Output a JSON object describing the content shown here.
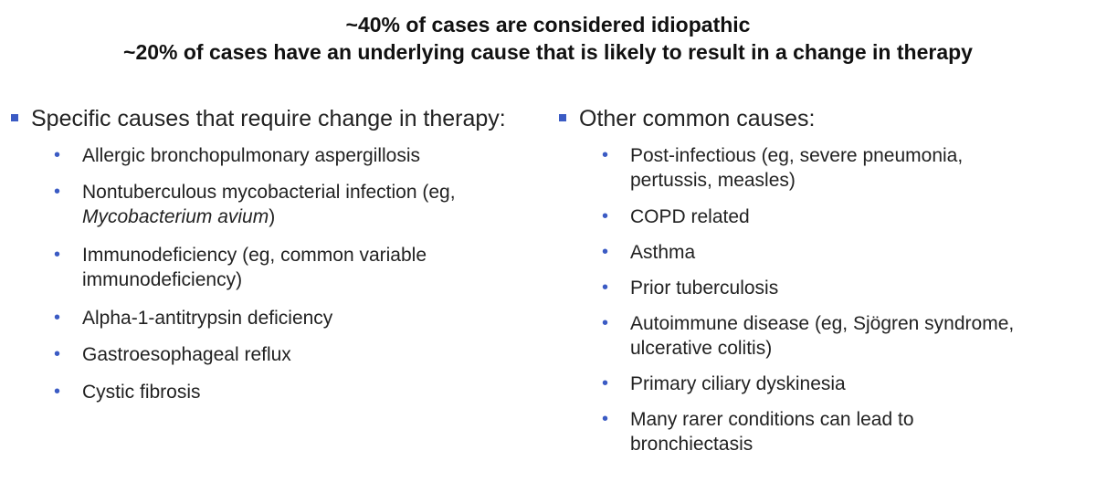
{
  "header": {
    "line1": "~40% of cases are considered idiopathic",
    "line2": "~20% of cases have an underlying cause that is likely to result in a change in therapy"
  },
  "left": {
    "heading": "Specific causes that require change in therapy:",
    "items": [
      {
        "text": "Allergic bronchopulmonary aspergillosis"
      },
      {
        "line1": "Nontuberculous mycobacterial infection (eg,",
        "line2_italic": "Mycobacterium avium",
        "line2_tail": ")"
      },
      {
        "line1": "Immunodeficiency (eg, common variable",
        "line2": "immunodeficiency)"
      },
      {
        "text": "Alpha-1-antitrypsin deficiency"
      },
      {
        "text": "Gastroesophageal reflux"
      },
      {
        "text": "Cystic fibrosis"
      }
    ]
  },
  "right": {
    "heading": "Other common causes:",
    "items": [
      {
        "line1": "Post-infectious (eg, severe pneumonia,",
        "line2": "pertussis, measles)"
      },
      {
        "text": "COPD related"
      },
      {
        "text": "Asthma"
      },
      {
        "text": "Prior tuberculosis"
      },
      {
        "line1": "Autoimmune disease (eg, Sjögren syndrome,",
        "line2": "ulcerative colitis)"
      },
      {
        "text": "Primary ciliary dyskinesia"
      },
      {
        "line1": "Many rarer conditions can lead to",
        "line2": "bronchiectasis"
      }
    ]
  },
  "colors": {
    "bullet": "#3b5bc4",
    "text": "#222222"
  },
  "icons": {
    "heading_bullet": "square-bullet-icon",
    "item_bullet": "dot-bullet-icon"
  }
}
